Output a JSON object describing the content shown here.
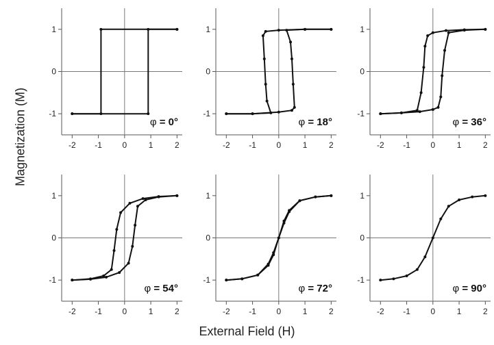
{
  "chart_data": {
    "type": "line",
    "ylabel": "Magnetization (M)",
    "xlabel": "External Field (H)",
    "xlim": [
      -2.4,
      2.2
    ],
    "ylim": [
      -1.5,
      1.5
    ],
    "xticks": [
      "-2",
      "-1",
      "0",
      "1",
      "2"
    ],
    "yticks": [
      "-1",
      "0",
      "1"
    ],
    "panels": [
      {
        "angle_label": "= 0°",
        "phi": 0,
        "series": [
          {
            "x": [
              -2.0,
              -0.9,
              -0.9,
              2.0
            ],
            "y": [
              -1.0,
              -1.0,
              1.0,
              1.0
            ]
          },
          {
            "x": [
              2.0,
              0.9,
              0.9,
              -2.0
            ],
            "y": [
              1.0,
              1.0,
              -1.0,
              -1.0
            ]
          }
        ]
      },
      {
        "angle_label": "= 18°",
        "phi": 18,
        "series": [
          {
            "x": [
              -2.0,
              -1.0,
              -0.3,
              -0.45,
              -0.5,
              -0.55,
              -0.6,
              -0.5,
              0.0,
              1.0,
              2.0
            ],
            "y": [
              -1.0,
              -1.0,
              -0.98,
              -0.7,
              -0.3,
              0.3,
              0.85,
              0.95,
              0.98,
              1.0,
              1.0
            ]
          },
          {
            "x": [
              2.0,
              1.0,
              0.3,
              0.45,
              0.5,
              0.55,
              0.6,
              0.5,
              0.0,
              -1.0,
              -2.0
            ],
            "y": [
              1.0,
              1.0,
              0.98,
              0.7,
              0.3,
              -0.3,
              -0.85,
              -0.92,
              -0.96,
              -1.0,
              -1.0
            ]
          }
        ]
      },
      {
        "angle_label": "= 36°",
        "phi": 36,
        "series": [
          {
            "x": [
              -2.0,
              -1.2,
              -0.6,
              -0.45,
              -0.35,
              -0.3,
              -0.2,
              0.0,
              0.5,
              1.2,
              2.0
            ],
            "y": [
              -1.0,
              -0.98,
              -0.92,
              -0.5,
              0.1,
              0.6,
              0.85,
              0.92,
              0.97,
              0.99,
              1.0
            ]
          },
          {
            "x": [
              2.0,
              1.2,
              0.6,
              0.45,
              0.35,
              0.3,
              0.2,
              0.0,
              -0.5,
              -1.2,
              -2.0
            ],
            "y": [
              1.0,
              0.98,
              0.92,
              0.5,
              -0.1,
              -0.6,
              -0.85,
              -0.9,
              -0.95,
              -0.98,
              -1.0
            ]
          }
        ]
      },
      {
        "angle_label": "= 54°",
        "phi": 54,
        "series": [
          {
            "x": [
              -2.0,
              -1.3,
              -0.8,
              -0.5,
              -0.4,
              -0.3,
              -0.15,
              0.2,
              0.7,
              1.3,
              2.0
            ],
            "y": [
              -1.0,
              -0.97,
              -0.9,
              -0.75,
              -0.3,
              0.2,
              0.6,
              0.82,
              0.93,
              0.98,
              1.0
            ]
          },
          {
            "x": [
              2.0,
              1.3,
              0.8,
              0.5,
              0.4,
              0.3,
              0.15,
              -0.2,
              -0.7,
              -1.3,
              -2.0
            ],
            "y": [
              1.0,
              0.97,
              0.9,
              0.75,
              0.3,
              -0.2,
              -0.6,
              -0.82,
              -0.93,
              -0.98,
              -1.0
            ]
          }
        ]
      },
      {
        "angle_label": "= 72°",
        "phi": 72,
        "series": [
          {
            "x": [
              -2.0,
              -1.4,
              -0.8,
              -0.4,
              -0.2,
              0.0,
              0.2,
              0.4,
              0.8,
              1.4,
              2.0
            ],
            "y": [
              -1.0,
              -0.97,
              -0.88,
              -0.62,
              -0.35,
              0.0,
              0.4,
              0.65,
              0.88,
              0.97,
              1.0
            ]
          },
          {
            "x": [
              2.0,
              1.4,
              0.8,
              0.4,
              0.2,
              0.0,
              -0.2,
              -0.4,
              -0.8,
              -1.4,
              -2.0
            ],
            "y": [
              1.0,
              0.97,
              0.88,
              0.62,
              0.35,
              0.0,
              -0.4,
              -0.65,
              -0.88,
              -0.97,
              -1.0
            ]
          }
        ]
      },
      {
        "angle_label": "= 90°",
        "phi": 90,
        "series": [
          {
            "x": [
              -2.0,
              -1.5,
              -1.0,
              -0.6,
              -0.3,
              0.0,
              0.3,
              0.6,
              1.0,
              1.5,
              2.0
            ],
            "y": [
              -1.0,
              -0.97,
              -0.9,
              -0.75,
              -0.45,
              0.0,
              0.45,
              0.75,
              0.9,
              0.97,
              1.0
            ]
          }
        ]
      }
    ]
  },
  "labels": {
    "ylabel": "Magnetization (M)",
    "xlabel": "External Field (H)"
  }
}
